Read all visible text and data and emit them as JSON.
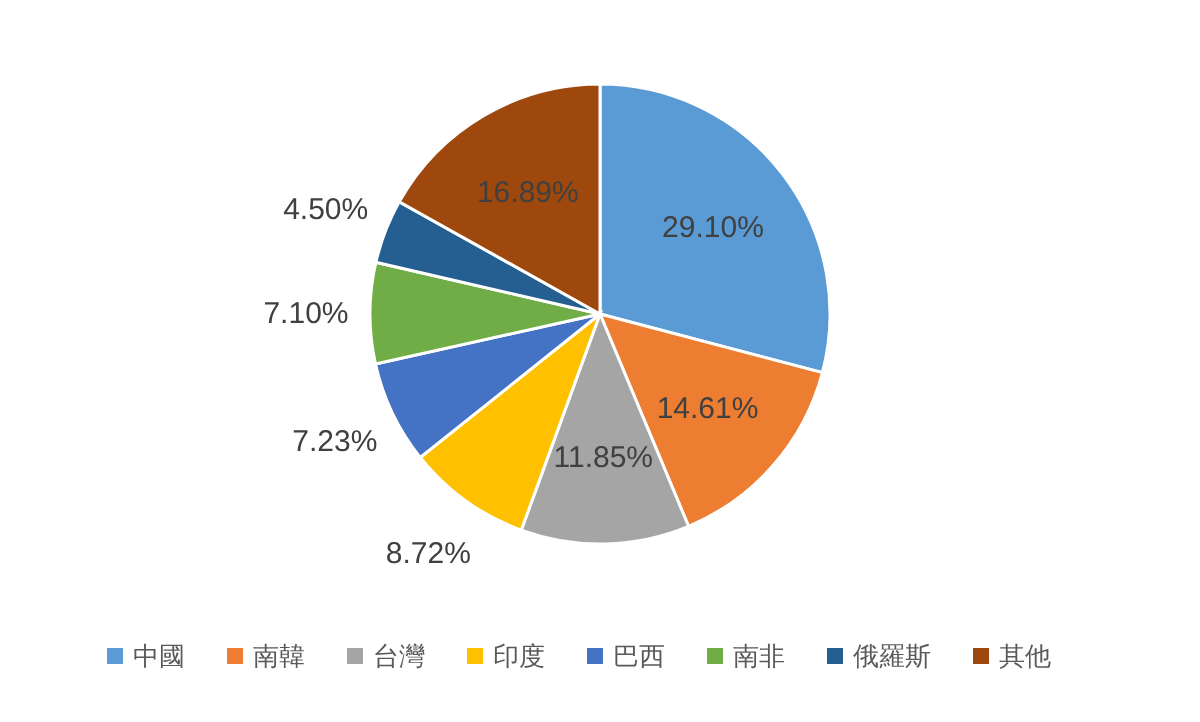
{
  "chart_data": {
    "type": "pie",
    "categories": [
      "中國",
      "南韓",
      "台灣",
      "印度",
      "巴西",
      "南非",
      "俄羅斯",
      "其他"
    ],
    "values": [
      29.1,
      14.61,
      11.85,
      8.72,
      7.23,
      7.1,
      4.5,
      16.89
    ],
    "colors": [
      "#5b9bd5",
      "#ed7d31",
      "#a5a5a5",
      "#ffc000",
      "#4472c4",
      "#70ad47",
      "#255e91",
      "#9e480e"
    ],
    "value_labels": [
      "29.10%",
      "14.61%",
      "11.85%",
      "8.72%",
      "7.23%",
      "7.10%",
      "4.50%",
      "16.89%"
    ],
    "legend": "bottom"
  }
}
